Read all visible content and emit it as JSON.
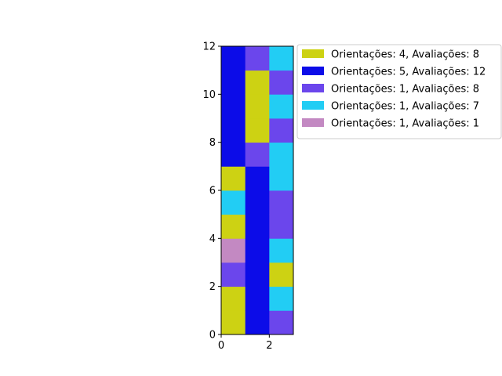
{
  "chart_data": {
    "type": "heatmap",
    "title": "",
    "xlabel": "",
    "ylabel": "",
    "xlim": [
      0,
      3
    ],
    "ylim": [
      0,
      12
    ],
    "xticks": [
      0,
      2
    ],
    "yticks": [
      0,
      2,
      4,
      6,
      8,
      10,
      12
    ],
    "grid": false,
    "legend_position": "outside-upper-right",
    "legend": [
      {
        "key": "A",
        "label": "Orientações: 4, Avaliações: 8",
        "color": "#cdd213"
      },
      {
        "key": "B",
        "label": "Orientações: 5, Avaliações: 12",
        "color": "#0c0ce8"
      },
      {
        "key": "C",
        "label": "Orientações: 1, Avaliações: 8",
        "color": "#6b46ec"
      },
      {
        "key": "D",
        "label": "Orientações: 1, Avaliações: 7",
        "color": "#22cdf4"
      },
      {
        "key": "E",
        "label": "Orientações: 1, Avaliações: 1",
        "color": "#c389c2"
      }
    ],
    "columns_bottom_to_top": [
      [
        "A",
        "A",
        "C",
        "E",
        "A",
        "D",
        "A",
        "B",
        "B",
        "B",
        "B",
        "B"
      ],
      [
        "B",
        "B",
        "B",
        "B",
        "B",
        "B",
        "B",
        "C",
        "A",
        "A",
        "A",
        "C"
      ],
      [
        "C",
        "D",
        "A",
        "D",
        "C",
        "C",
        "D",
        "D",
        "C",
        "D",
        "C",
        "D"
      ]
    ]
  }
}
